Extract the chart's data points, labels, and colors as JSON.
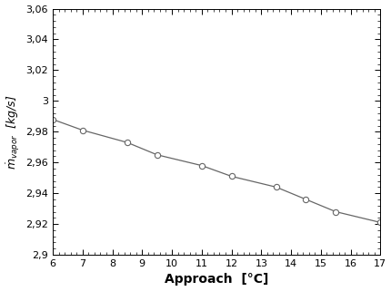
{
  "x": [
    6,
    7,
    8.5,
    9.5,
    11,
    12,
    13.5,
    14.5,
    15.5,
    17
  ],
  "y": [
    2.988,
    2.981,
    2.973,
    2.965,
    2.958,
    2.951,
    2.944,
    2.936,
    2.928,
    2.921
  ],
  "xlabel": "Approach  [°C]",
  "xlim": [
    6,
    17
  ],
  "ylim": [
    2.9,
    3.06
  ],
  "xticks": [
    6,
    7,
    8,
    9,
    10,
    11,
    12,
    13,
    14,
    15,
    16,
    17
  ],
  "yticks": [
    2.9,
    2.92,
    2.94,
    2.96,
    2.98,
    3.0,
    3.02,
    3.04,
    3.06
  ],
  "line_color": "#666666",
  "marker_facecolor": "white",
  "marker_edgecolor": "#666666",
  "background_color": "#ffffff",
  "tick_label_fontsize": 8,
  "xlabel_fontsize": 10,
  "ylabel_fontsize": 9
}
